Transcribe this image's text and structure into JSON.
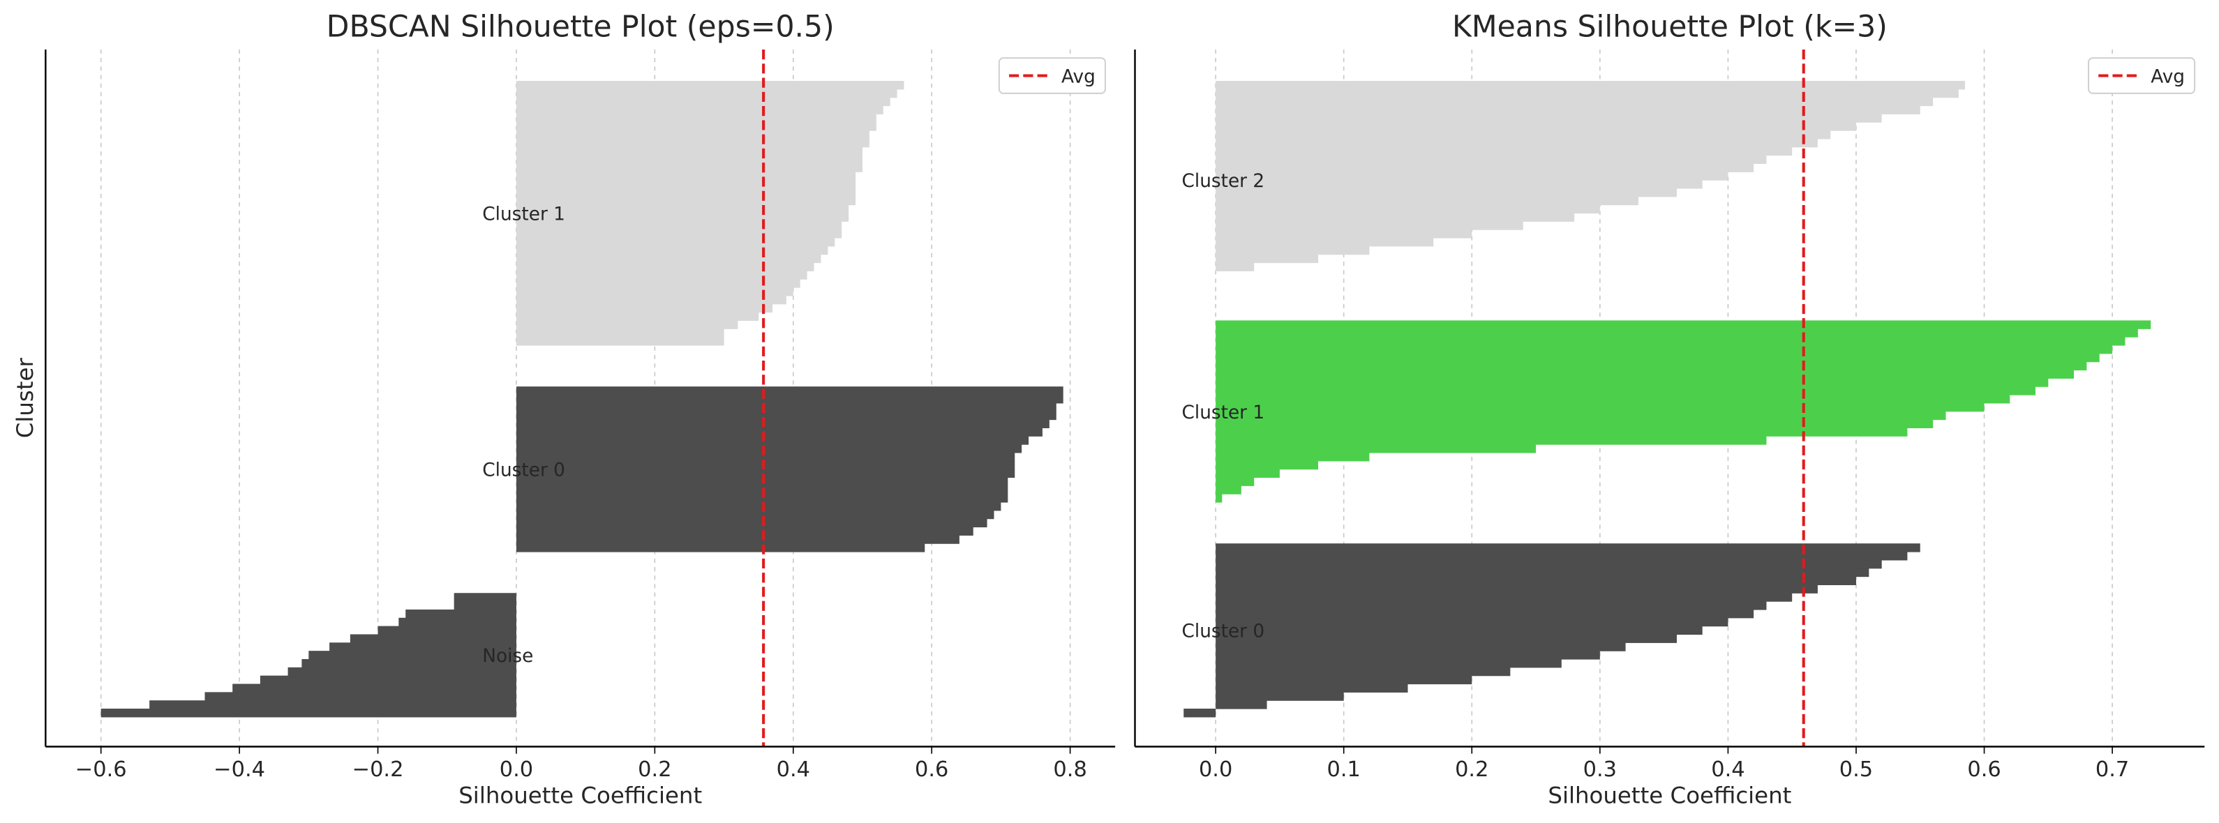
{
  "chart_data": [
    {
      "type": "silhouette",
      "title": "DBSCAN Silhouette Plot (eps=0.5)",
      "xlabel": "Silhouette Coefficient",
      "ylabel": "Cluster",
      "xlim": [
        -0.68,
        0.865
      ],
      "xticks": [
        {
          "value": -0.6,
          "label": "−0.6"
        },
        {
          "value": -0.4,
          "label": "−0.4"
        },
        {
          "value": -0.2,
          "label": "−0.2"
        },
        {
          "value": 0,
          "label": "0.0"
        },
        0.2,
        0.4,
        0.6,
        0.8
      ],
      "grid": true,
      "avg": 0.357,
      "avg_label": "Avg",
      "avg_color": "#e31a1c",
      "legend": "upper right",
      "series": [
        {
          "name": "Noise",
          "color": "#4d4d4d",
          "values": [
            -0.6,
            -0.53,
            -0.45,
            -0.41,
            -0.37,
            -0.33,
            -0.31,
            -0.3,
            -0.27,
            -0.24,
            -0.2,
            -0.17,
            -0.16,
            -0.09,
            -0.09
          ]
        },
        {
          "name": "Cluster 0",
          "color": "#4d4d4d",
          "values": [
            0.59,
            0.64,
            0.66,
            0.68,
            0.69,
            0.7,
            0.71,
            0.71,
            0.71,
            0.72,
            0.72,
            0.72,
            0.73,
            0.74,
            0.76,
            0.77,
            0.78,
            0.78,
            0.79,
            0.79
          ]
        },
        {
          "name": "Cluster 1",
          "color": "#d9d9d9",
          "values": [
            0.3,
            0.3,
            0.32,
            0.35,
            0.37,
            0.39,
            0.4,
            0.41,
            0.42,
            0.43,
            0.44,
            0.45,
            0.46,
            0.47,
            0.47,
            0.48,
            0.48,
            0.49,
            0.49,
            0.49,
            0.49,
            0.5,
            0.5,
            0.5,
            0.51,
            0.51,
            0.52,
            0.52,
            0.53,
            0.54,
            0.55,
            0.56
          ]
        }
      ]
    },
    {
      "type": "silhouette",
      "title": "KMeans Silhouette Plot (k=3)",
      "xlabel": "Silhouette Coefficient",
      "xlim": [
        -0.063,
        0.772
      ],
      "xticks": [
        {
          "value": 0,
          "label": "0.0"
        },
        0.1,
        0.2,
        0.3,
        0.4,
        0.5,
        0.6,
        0.7
      ],
      "grid": true,
      "avg": 0.459,
      "avg_label": "Avg",
      "avg_color": "#e31a1c",
      "legend": "upper right",
      "series": [
        {
          "name": "Cluster 0",
          "color": "#4d4d4d",
          "values": [
            -0.025,
            0.04,
            0.1,
            0.15,
            0.2,
            0.23,
            0.27,
            0.3,
            0.32,
            0.36,
            0.38,
            0.4,
            0.42,
            0.43,
            0.45,
            0.47,
            0.5,
            0.51,
            0.52,
            0.54,
            0.55
          ]
        },
        {
          "name": "Cluster 1",
          "color": "#4cd04c",
          "values": [
            0.005,
            0.02,
            0.03,
            0.05,
            0.08,
            0.12,
            0.25,
            0.43,
            0.54,
            0.56,
            0.57,
            0.6,
            0.62,
            0.64,
            0.65,
            0.67,
            0.68,
            0.69,
            0.7,
            0.71,
            0.72,
            0.73
          ]
        },
        {
          "name": "Cluster 2",
          "color": "#d9d9d9",
          "values": [
            0.0,
            0.03,
            0.08,
            0.12,
            0.17,
            0.2,
            0.24,
            0.28,
            0.3,
            0.33,
            0.36,
            0.38,
            0.4,
            0.42,
            0.43,
            0.45,
            0.47,
            0.48,
            0.5,
            0.52,
            0.55,
            0.56,
            0.58,
            0.585
          ]
        }
      ]
    }
  ]
}
